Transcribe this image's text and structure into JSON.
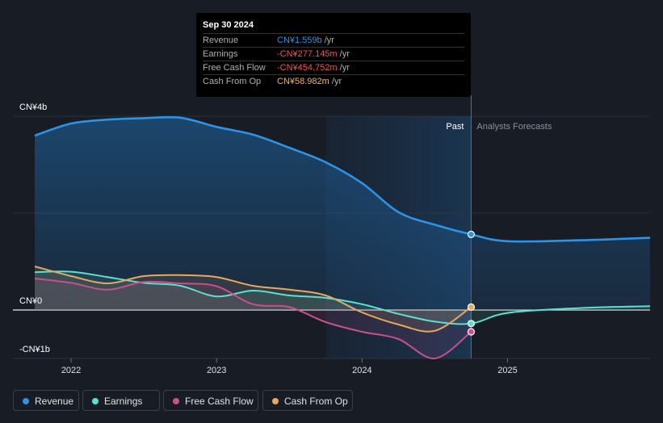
{
  "tooltip": {
    "date": "Sep 30 2024",
    "rows": [
      {
        "label": "Revenue",
        "value": "CN¥1.559b",
        "unit": " /yr",
        "color": "#2e93e6"
      },
      {
        "label": "Earnings",
        "value": "-CN¥277.145m",
        "unit": " /yr",
        "color": "#ff4d4d"
      },
      {
        "label": "Free Cash Flow",
        "value": "-CN¥454.752m",
        "unit": " /yr",
        "color": "#ff4d4d"
      },
      {
        "label": "Cash From Op",
        "value": "CN¥58.982m",
        "unit": " /yr",
        "color": "#f5b26b"
      }
    ]
  },
  "legend": [
    {
      "label": "Revenue",
      "color": "#2e93e6"
    },
    {
      "label": "Earnings",
      "color": "#5ce0d0"
    },
    {
      "label": "Free Cash Flow",
      "color": "#c94f8f"
    },
    {
      "label": "Cash From Op",
      "color": "#e8a85c"
    }
  ],
  "chart_data": {
    "type": "line",
    "title": "",
    "ylim": [
      -1,
      4
    ],
    "xlim": [
      2021.6,
      2025.98
    ],
    "y_tick_labels": [
      {
        "value": 4,
        "label": "CN¥4b"
      },
      {
        "value": 0,
        "label": "CN¥0"
      },
      {
        "value": -1,
        "label": "-CN¥1b"
      }
    ],
    "x_tick_labels": [
      {
        "value": 2022.0,
        "label": "2022"
      },
      {
        "value": 2023.0,
        "label": "2023"
      },
      {
        "value": 2024.0,
        "label": "2024"
      },
      {
        "value": 2025.0,
        "label": "2025"
      }
    ],
    "past_label": "Past",
    "forecast_label": "Analysts Forecasts",
    "forecast_start": 2023.75,
    "divider": 2024.75,
    "series": [
      {
        "name": "Revenue",
        "color": "#2e93e6",
        "fill": true,
        "points": [
          [
            2021.75,
            3.6
          ],
          [
            2022.0,
            3.85
          ],
          [
            2022.25,
            3.93
          ],
          [
            2022.5,
            3.96
          ],
          [
            2022.75,
            3.97
          ],
          [
            2023.0,
            3.78
          ],
          [
            2023.25,
            3.62
          ],
          [
            2023.5,
            3.35
          ],
          [
            2023.75,
            3.05
          ],
          [
            2024.0,
            2.62
          ],
          [
            2024.25,
            2.02
          ],
          [
            2024.5,
            1.76
          ],
          [
            2024.75,
            1.56
          ],
          [
            2025.0,
            1.42
          ],
          [
            2025.5,
            1.44
          ],
          [
            2025.98,
            1.49
          ]
        ]
      },
      {
        "name": "Earnings",
        "color": "#5ce0d0",
        "fill": false,
        "points": [
          [
            2021.75,
            0.78
          ],
          [
            2022.0,
            0.79
          ],
          [
            2022.25,
            0.68
          ],
          [
            2022.5,
            0.56
          ],
          [
            2022.75,
            0.5
          ],
          [
            2023.0,
            0.28
          ],
          [
            2023.25,
            0.4
          ],
          [
            2023.5,
            0.3
          ],
          [
            2023.75,
            0.25
          ],
          [
            2024.0,
            0.12
          ],
          [
            2024.25,
            -0.08
          ],
          [
            2024.5,
            -0.24
          ],
          [
            2024.75,
            -0.28
          ],
          [
            2025.0,
            -0.06
          ],
          [
            2025.5,
            0.04
          ],
          [
            2025.98,
            0.08
          ]
        ]
      },
      {
        "name": "Free Cash Flow",
        "color": "#c94f8f",
        "fill": false,
        "points": [
          [
            2021.75,
            0.65
          ],
          [
            2022.0,
            0.56
          ],
          [
            2022.25,
            0.42
          ],
          [
            2022.5,
            0.58
          ],
          [
            2022.75,
            0.55
          ],
          [
            2023.0,
            0.49
          ],
          [
            2023.25,
            0.12
          ],
          [
            2023.5,
            0.06
          ],
          [
            2023.75,
            -0.25
          ],
          [
            2024.0,
            -0.45
          ],
          [
            2024.25,
            -0.6
          ],
          [
            2024.5,
            -1.0
          ],
          [
            2024.75,
            -0.45
          ]
        ]
      },
      {
        "name": "Cash From Op",
        "color": "#e8a85c",
        "fill": false,
        "points": [
          [
            2021.75,
            0.9
          ],
          [
            2022.0,
            0.7
          ],
          [
            2022.25,
            0.55
          ],
          [
            2022.5,
            0.7
          ],
          [
            2022.75,
            0.72
          ],
          [
            2023.0,
            0.68
          ],
          [
            2023.25,
            0.5
          ],
          [
            2023.5,
            0.42
          ],
          [
            2023.75,
            0.3
          ],
          [
            2024.0,
            -0.05
          ],
          [
            2024.25,
            -0.3
          ],
          [
            2024.5,
            -0.43
          ],
          [
            2024.75,
            0.06
          ]
        ]
      }
    ]
  }
}
